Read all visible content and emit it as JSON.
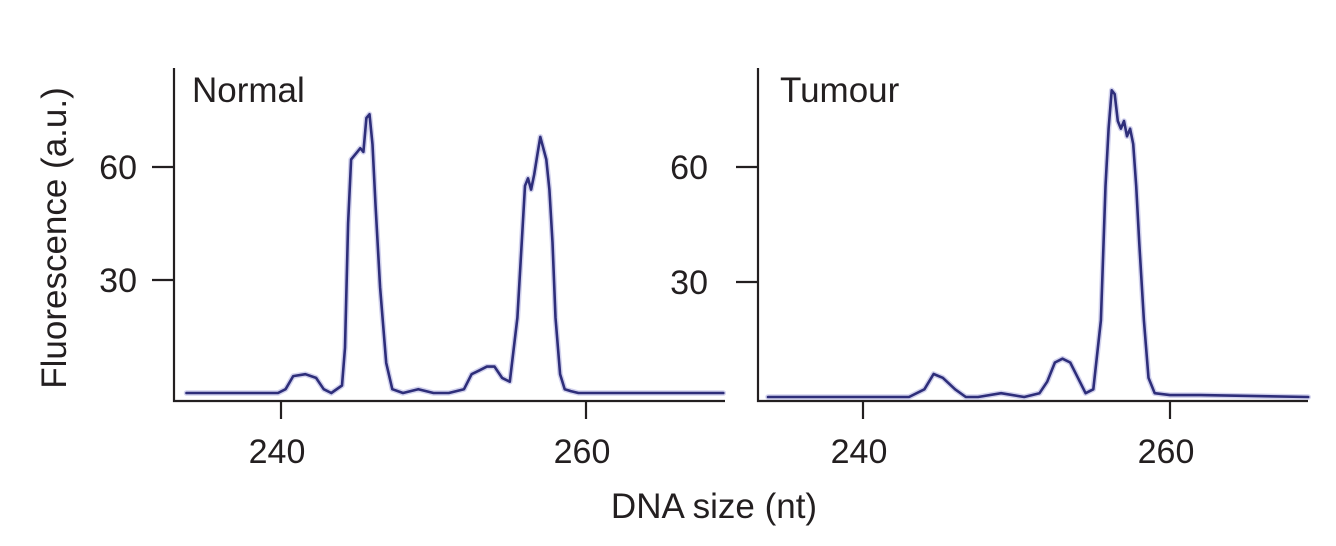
{
  "chart_data": {
    "type": "line",
    "ylabel": "Fluorescence (a.u.)",
    "xlabel": "DNA size (nt)",
    "xlim": [
      233,
      269
    ],
    "ylim": [
      -3,
      85
    ],
    "xticks": [
      240,
      260
    ],
    "yticks": [
      30,
      60
    ],
    "line_color": "#2e2e7a",
    "halo_color": "#9b9bd6",
    "panels": [
      {
        "label": "Normal",
        "series": {
          "x": [
            233.8,
            239.8,
            240.3,
            240.8,
            241.6,
            242.3,
            242.8,
            243.3,
            244.0,
            244.2,
            244.4,
            244.6,
            244.8,
            245.0,
            245.2,
            245.4,
            245.6,
            245.8,
            246.0,
            246.2,
            246.5,
            246.9,
            247.3,
            248.0,
            249.0,
            250.0,
            251.0,
            252.0,
            252.5,
            253.0,
            253.5,
            254.0,
            254.5,
            255.0,
            255.5,
            256.0,
            256.2,
            256.4,
            256.6,
            256.8,
            257.0,
            257.2,
            257.4,
            257.6,
            257.8,
            258.0,
            258.3,
            258.6,
            259.0,
            259.5,
            260.5,
            263.0,
            269.0
          ],
          "y": [
            0,
            0,
            1,
            4.5,
            5,
            4,
            1,
            0,
            2,
            12,
            45,
            62,
            63,
            64,
            65,
            64,
            73,
            74,
            66,
            50,
            28,
            8,
            1,
            0,
            1,
            0,
            0,
            1,
            5,
            6,
            7,
            7,
            4,
            3,
            20,
            55,
            57,
            54,
            58,
            63,
            68,
            65,
            62,
            54,
            40,
            20,
            5,
            1,
            0.5,
            0,
            0,
            0,
            0
          ]
        }
      },
      {
        "label": "Tumour",
        "series": {
          "x": [
            233.5,
            237.0,
            243.0,
            244.0,
            244.6,
            245.2,
            246.0,
            246.7,
            247.5,
            249.0,
            250.5,
            251.5,
            252.0,
            252.5,
            253.0,
            253.5,
            254.0,
            254.5,
            255.0,
            255.5,
            255.8,
            256.0,
            256.2,
            256.4,
            256.6,
            256.8,
            257.0,
            257.2,
            257.4,
            257.6,
            257.8,
            258.0,
            258.3,
            258.6,
            259.0,
            260.0,
            262.0,
            269.0
          ],
          "y": [
            0,
            0,
            0,
            2,
            6,
            5,
            2,
            0,
            0,
            1,
            0,
            1,
            4,
            9,
            10,
            9,
            5,
            1,
            2,
            20,
            55,
            70,
            80,
            79,
            72,
            70,
            72,
            68,
            70,
            66,
            55,
            40,
            20,
            5,
            1,
            0.5,
            0.5,
            0
          ]
        }
      }
    ]
  }
}
